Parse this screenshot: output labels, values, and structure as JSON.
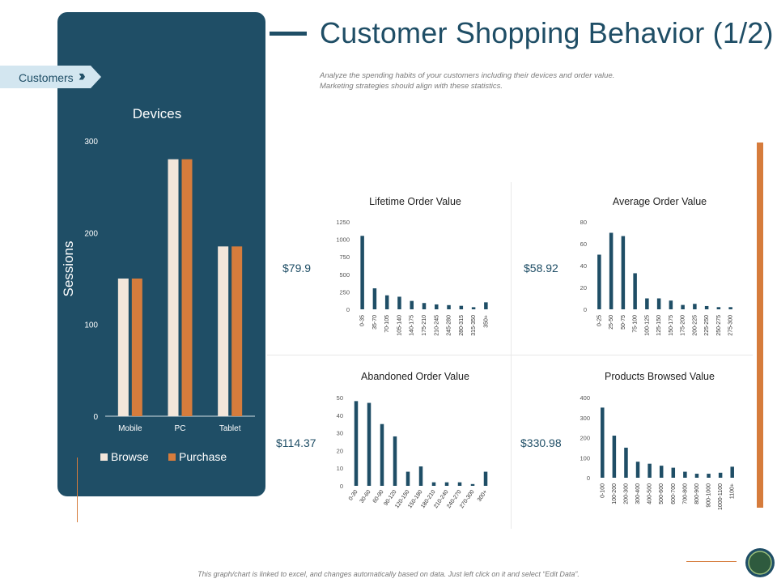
{
  "header": {
    "title": "Customer Shopping Behavior (1/2)",
    "subtitle_line1": "Analyze the spending habits of your customers including their devices and order value.",
    "subtitle_line2": "Marketing strategies should align with these statistics."
  },
  "tag": {
    "label": "Customers"
  },
  "footer": {
    "text": "This graph/chart is linked to excel, and changes automatically based on data. Just left click on it and select “Edit Data”."
  },
  "colors": {
    "primary": "#1f4e66",
    "accent": "#d67c3c",
    "browse": "#f3e6da",
    "purchase": "#d67c3c"
  },
  "kpis": {
    "lifetime": "$79.9",
    "average": "$58.92",
    "abandoned": "$114.37",
    "browsed": "$330.98"
  },
  "chart_data": [
    {
      "id": "devices",
      "type": "bar",
      "title": "Devices",
      "ylabel": "Sessions",
      "ylim": [
        0,
        300
      ],
      "yticks": [
        0,
        100,
        200,
        300
      ],
      "categories": [
        "Mobile",
        "PC",
        "Tablet"
      ],
      "series": [
        {
          "name": "Browse",
          "values": [
            150,
            280,
            185
          ]
        },
        {
          "name": "Purchase",
          "values": [
            150,
            280,
            185
          ]
        }
      ],
      "legend": "bottom"
    },
    {
      "id": "lifetime",
      "type": "bar",
      "title": "Lifetime Order Value",
      "ylim": [
        0,
        1250
      ],
      "yticks": [
        0,
        250,
        500,
        750,
        1000,
        1250
      ],
      "categories": [
        "0-35",
        "35-70",
        "70-105",
        "105-140",
        "140-175",
        "175-210",
        "210-245",
        "245-280",
        "280-315",
        "315-350",
        "350+"
      ],
      "values": [
        1050,
        300,
        200,
        180,
        120,
        90,
        70,
        60,
        50,
        30,
        100
      ]
    },
    {
      "id": "average",
      "type": "bar",
      "title": "Average Order Value",
      "ylim": [
        0,
        80
      ],
      "yticks": [
        0,
        20,
        40,
        60,
        80
      ],
      "categories": [
        "0-25",
        "25-50",
        "50-75",
        "75-100",
        "100-125",
        "125-150",
        "150-175",
        "175-200",
        "200-225",
        "225-250",
        "250-275",
        "275-300"
      ],
      "values": [
        50,
        70,
        67,
        33,
        10,
        10,
        8,
        4,
        5,
        3,
        2,
        2
      ]
    },
    {
      "id": "abandoned",
      "type": "bar",
      "title": "Abandoned Order Value",
      "ylim": [
        0,
        50
      ],
      "yticks": [
        0,
        10,
        20,
        30,
        40,
        50
      ],
      "categories": [
        "0-30",
        "30-60",
        "60-90",
        "90-120",
        "120-150",
        "150-180",
        "180-210",
        "210-240",
        "240-270",
        "270-300",
        "300+"
      ],
      "values": [
        48,
        47,
        35,
        28,
        8,
        11,
        2,
        2,
        2,
        1,
        8
      ]
    },
    {
      "id": "browsed",
      "type": "bar",
      "title": "Products Browsed Value",
      "ylim": [
        0,
        400
      ],
      "yticks": [
        0,
        100,
        200,
        300,
        400
      ],
      "categories": [
        "0-100",
        "100-200",
        "200-300",
        "300-400",
        "400-500",
        "500-600",
        "600-700",
        "700-800",
        "800-900",
        "900-1000",
        "1000-1100",
        "1100+"
      ],
      "values": [
        350,
        210,
        150,
        80,
        70,
        60,
        50,
        30,
        20,
        20,
        25,
        55
      ]
    }
  ]
}
